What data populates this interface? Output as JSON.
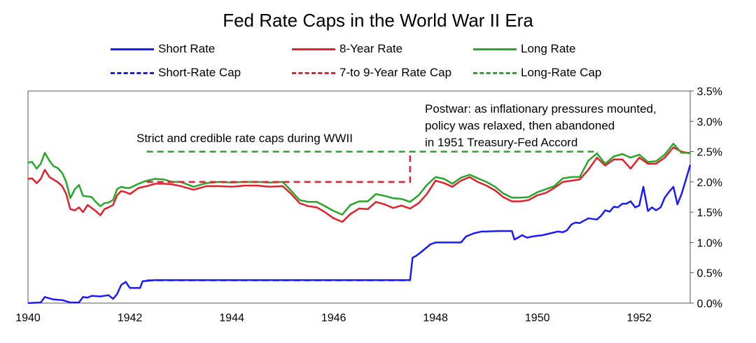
{
  "chart_data": {
    "type": "line",
    "title": "Fed Rate Caps in the World War II Era",
    "xlabel": "",
    "ylabel": "",
    "xlim": [
      1940,
      1953
    ],
    "ylim": [
      0,
      3.5
    ],
    "x_ticks": [
      "1940",
      "1942",
      "1944",
      "1946",
      "1948",
      "1950",
      "1952"
    ],
    "y_ticks": [
      "0.0%",
      "0.5%",
      "1.0%",
      "1.5%",
      "2.0%",
      "2.5%",
      "3.0%",
      "3.5%"
    ],
    "grid": false,
    "legend_position": "top",
    "series": [
      {
        "name": "Short Rate",
        "color": "#1a1aff",
        "style": "solid",
        "x": [
          1940.0,
          1940.25,
          1940.33,
          1940.5,
          1940.67,
          1940.83,
          1941.0,
          1941.08,
          1941.17,
          1941.25,
          1941.42,
          1941.58,
          1941.67,
          1941.75,
          1941.83,
          1941.92,
          1942.0,
          1942.08,
          1942.2,
          1942.25,
          1942.5,
          1943.0,
          1944.0,
          1945.0,
          1946.0,
          1947.0,
          1947.4,
          1947.5,
          1947.55,
          1947.62,
          1947.7,
          1947.8,
          1947.9,
          1948.0,
          1948.25,
          1948.5,
          1948.6,
          1948.75,
          1948.9,
          1949.0,
          1949.25,
          1949.5,
          1949.55,
          1949.62,
          1949.7,
          1949.8,
          1949.9,
          1950.0,
          1950.1,
          1950.25,
          1950.4,
          1950.5,
          1950.58,
          1950.67,
          1950.75,
          1950.83,
          1951.0,
          1951.08,
          1951.17,
          1951.25,
          1951.33,
          1951.42,
          1951.5,
          1951.58,
          1951.67,
          1951.75,
          1951.83,
          1951.92,
          1952.0,
          1952.08,
          1952.17,
          1952.25,
          1952.33,
          1952.42,
          1952.5,
          1952.58,
          1952.67,
          1952.75,
          1952.83,
          1952.92,
          1953.0
        ],
        "values": [
          0.0,
          0.01,
          0.1,
          0.06,
          0.05,
          0.01,
          0.01,
          0.1,
          0.09,
          0.12,
          0.11,
          0.13,
          0.07,
          0.15,
          0.3,
          0.35,
          0.25,
          0.25,
          0.25,
          0.36,
          0.38,
          0.38,
          0.38,
          0.38,
          0.38,
          0.38,
          0.38,
          0.38,
          0.75,
          0.78,
          0.83,
          0.9,
          0.97,
          1.0,
          1.0,
          1.0,
          1.1,
          1.15,
          1.18,
          1.18,
          1.19,
          1.19,
          1.05,
          1.08,
          1.12,
          1.08,
          1.1,
          1.11,
          1.12,
          1.15,
          1.18,
          1.17,
          1.2,
          1.3,
          1.33,
          1.32,
          1.4,
          1.39,
          1.38,
          1.44,
          1.53,
          1.51,
          1.59,
          1.58,
          1.64,
          1.64,
          1.68,
          1.58,
          1.61,
          1.92,
          1.52,
          1.58,
          1.53,
          1.58,
          1.74,
          1.83,
          1.92,
          1.63,
          1.8,
          2.05,
          2.28
        ]
      },
      {
        "name": "8-Year Rate",
        "color": "#e3202b",
        "style": "solid",
        "x": [
          1940.0,
          1940.08,
          1940.17,
          1940.25,
          1940.33,
          1940.42,
          1940.5,
          1940.58,
          1940.67,
          1940.75,
          1940.83,
          1940.92,
          1941.0,
          1941.08,
          1941.17,
          1941.25,
          1941.33,
          1941.42,
          1941.5,
          1941.58,
          1941.67,
          1941.75,
          1941.83,
          1941.92,
          1942.0,
          1942.17,
          1942.33,
          1942.5,
          1942.67,
          1942.83,
          1943.0,
          1943.25,
          1943.5,
          1943.75,
          1944.0,
          1944.25,
          1944.5,
          1944.75,
          1945.0,
          1945.17,
          1945.33,
          1945.5,
          1945.67,
          1945.83,
          1946.0,
          1946.17,
          1946.33,
          1946.5,
          1946.67,
          1946.83,
          1947.0,
          1947.17,
          1947.33,
          1947.5,
          1947.67,
          1947.83,
          1948.0,
          1948.17,
          1948.33,
          1948.5,
          1948.67,
          1948.83,
          1949.0,
          1949.17,
          1949.33,
          1949.5,
          1949.67,
          1949.83,
          1950.0,
          1950.17,
          1950.33,
          1950.5,
          1950.67,
          1950.83,
          1951.0,
          1951.17,
          1951.33,
          1951.5,
          1951.67,
          1951.83,
          1952.0,
          1952.17,
          1952.33,
          1952.5,
          1952.67,
          1952.83,
          1953.0
        ],
        "values": [
          2.05,
          2.06,
          1.98,
          2.05,
          2.2,
          2.08,
          2.04,
          2.0,
          1.93,
          1.8,
          1.55,
          1.53,
          1.58,
          1.5,
          1.62,
          1.57,
          1.52,
          1.45,
          1.55,
          1.58,
          1.62,
          1.78,
          1.85,
          1.83,
          1.8,
          1.9,
          1.93,
          1.97,
          1.97,
          1.96,
          1.93,
          1.87,
          1.93,
          1.93,
          1.92,
          1.94,
          1.94,
          1.92,
          1.93,
          1.8,
          1.65,
          1.6,
          1.58,
          1.5,
          1.4,
          1.34,
          1.47,
          1.56,
          1.55,
          1.67,
          1.63,
          1.57,
          1.61,
          1.56,
          1.65,
          1.8,
          2.02,
          1.98,
          1.92,
          2.02,
          2.08,
          2.0,
          1.94,
          1.86,
          1.75,
          1.68,
          1.68,
          1.7,
          1.78,
          1.82,
          1.9,
          2.0,
          2.02,
          2.04,
          2.2,
          2.4,
          2.27,
          2.37,
          2.37,
          2.22,
          2.4,
          2.3,
          2.3,
          2.4,
          2.57,
          2.5,
          2.47
        ]
      },
      {
        "name": "Long Rate",
        "color": "#27a627",
        "style": "solid",
        "x": [
          1940.0,
          1940.08,
          1940.17,
          1940.25,
          1940.33,
          1940.42,
          1940.5,
          1940.58,
          1940.67,
          1940.75,
          1940.83,
          1940.92,
          1941.0,
          1941.08,
          1941.17,
          1941.25,
          1941.33,
          1941.42,
          1941.5,
          1941.58,
          1941.67,
          1941.75,
          1941.83,
          1941.92,
          1942.0,
          1942.17,
          1942.33,
          1942.5,
          1942.67,
          1942.83,
          1943.0,
          1943.25,
          1943.5,
          1943.75,
          1944.0,
          1944.25,
          1944.5,
          1944.75,
          1945.0,
          1945.17,
          1945.33,
          1945.5,
          1945.67,
          1945.83,
          1946.0,
          1946.17,
          1946.33,
          1946.5,
          1946.67,
          1946.83,
          1947.0,
          1947.17,
          1947.33,
          1947.5,
          1947.67,
          1947.83,
          1948.0,
          1948.17,
          1948.33,
          1948.5,
          1948.67,
          1948.83,
          1949.0,
          1949.17,
          1949.33,
          1949.5,
          1949.67,
          1949.83,
          1950.0,
          1950.17,
          1950.33,
          1950.5,
          1950.67,
          1950.83,
          1951.0,
          1951.17,
          1951.33,
          1951.5,
          1951.67,
          1951.83,
          1952.0,
          1952.17,
          1952.33,
          1952.5,
          1952.67,
          1952.83,
          1953.0
        ],
        "values": [
          2.32,
          2.33,
          2.22,
          2.3,
          2.48,
          2.35,
          2.26,
          2.23,
          2.15,
          2.0,
          1.73,
          1.88,
          1.95,
          1.77,
          1.76,
          1.75,
          1.67,
          1.6,
          1.65,
          1.66,
          1.7,
          1.88,
          1.92,
          1.9,
          1.9,
          1.97,
          2.02,
          2.05,
          2.04,
          2.0,
          2.0,
          1.92,
          1.98,
          2.0,
          1.99,
          2.0,
          2.0,
          1.99,
          2.0,
          1.85,
          1.7,
          1.67,
          1.67,
          1.6,
          1.52,
          1.46,
          1.62,
          1.68,
          1.68,
          1.8,
          1.77,
          1.73,
          1.72,
          1.67,
          1.78,
          1.95,
          2.08,
          2.05,
          1.97,
          2.07,
          2.12,
          2.06,
          2.0,
          1.92,
          1.81,
          1.74,
          1.74,
          1.75,
          1.83,
          1.88,
          1.93,
          2.06,
          2.08,
          2.08,
          2.35,
          2.47,
          2.3,
          2.42,
          2.46,
          2.4,
          2.45,
          2.33,
          2.34,
          2.45,
          2.63,
          2.48,
          2.48
        ]
      },
      {
        "name": "Short-Rate Cap",
        "color": "#1a1aff",
        "style": "dashed",
        "x": [
          1942.33,
          1947.5
        ],
        "values": [
          0.375,
          0.375
        ]
      },
      {
        "name": "7-to 9-Year Rate Cap",
        "color": "#e3202b",
        "style": "dashed",
        "x": [
          1942.33,
          1947.5,
          1947.5
        ],
        "values": [
          2.0,
          2.0,
          2.5
        ]
      },
      {
        "name": "Long-Rate Cap",
        "color": "#27a627",
        "style": "dashed",
        "x": [
          1942.33,
          1951.2
        ],
        "values": [
          2.5,
          2.5
        ]
      }
    ],
    "annotations": [
      {
        "text": "Strict and credible rate caps during WWII"
      },
      {
        "text": "Postwar: as inflationary pressures mounted,"
      },
      {
        "text": "policy was relaxed, then abandoned"
      },
      {
        "text": "in 1951 Treasury-Fed Accord"
      }
    ]
  }
}
